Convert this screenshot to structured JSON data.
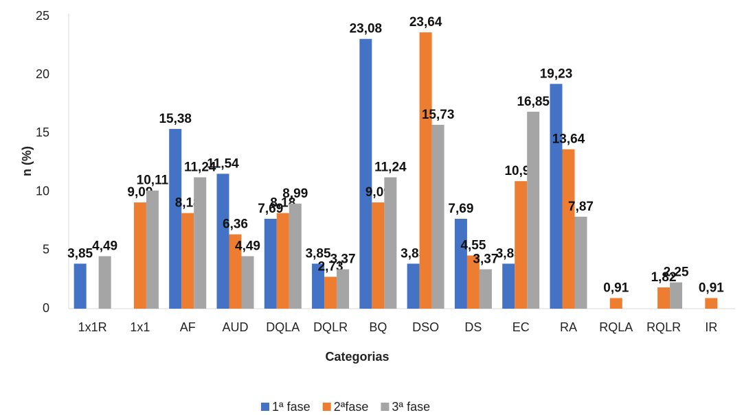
{
  "chart_data": {
    "type": "bar",
    "categories": [
      "1x1R",
      "1x1",
      "AF",
      "AUD",
      "DQLA",
      "DQLR",
      "BQ",
      "DSO",
      "DS",
      "EC",
      "RA",
      "RQLA",
      "RQLR",
      "IR"
    ],
    "series": [
      {
        "name": "1ª fase",
        "color": "#4472c4",
        "values": [
          3.85,
          null,
          15.38,
          11.54,
          7.69,
          3.85,
          23.08,
          3.85,
          7.69,
          3.85,
          19.23,
          null,
          null,
          null
        ],
        "value_labels": [
          "3,85",
          null,
          "15,38",
          "11,54",
          "7,69",
          "3,85",
          "23,08",
          "3,85",
          "7,69",
          "3,85",
          "19,23",
          null,
          null,
          null
        ]
      },
      {
        "name": "2ªfase",
        "color": "#ed7d31",
        "values": [
          null,
          9.09,
          8.18,
          6.36,
          8.18,
          2.73,
          9.09,
          23.64,
          4.55,
          10.91,
          13.64,
          0.91,
          1.82,
          0.91
        ],
        "value_labels": [
          null,
          "9,09",
          "8,18",
          "6,36",
          "8,18",
          "2,73",
          "9,09",
          "23,64",
          "4,55",
          "10,91",
          "13,64",
          "0,91",
          "1,82",
          "0,91"
        ]
      },
      {
        "name": "3ª fase",
        "color": "#a5a5a5",
        "values": [
          4.49,
          10.11,
          11.24,
          4.49,
          8.99,
          3.37,
          11.24,
          15.73,
          3.37,
          16.85,
          7.87,
          null,
          2.25,
          null
        ],
        "value_labels": [
          "4,49",
          "10,11",
          "11,24",
          "4,49",
          "8,99",
          "3,37",
          "11,24",
          "15,73",
          "3,37",
          "16,85",
          "7,87",
          null,
          "2,25",
          null
        ]
      }
    ],
    "ylim": [
      0,
      25
    ],
    "yticks": [
      0,
      5,
      10,
      15,
      20,
      25
    ],
    "xlabel": "Categorias",
    "ylabel": "n (%)",
    "legend": "bottom",
    "grid": false
  }
}
